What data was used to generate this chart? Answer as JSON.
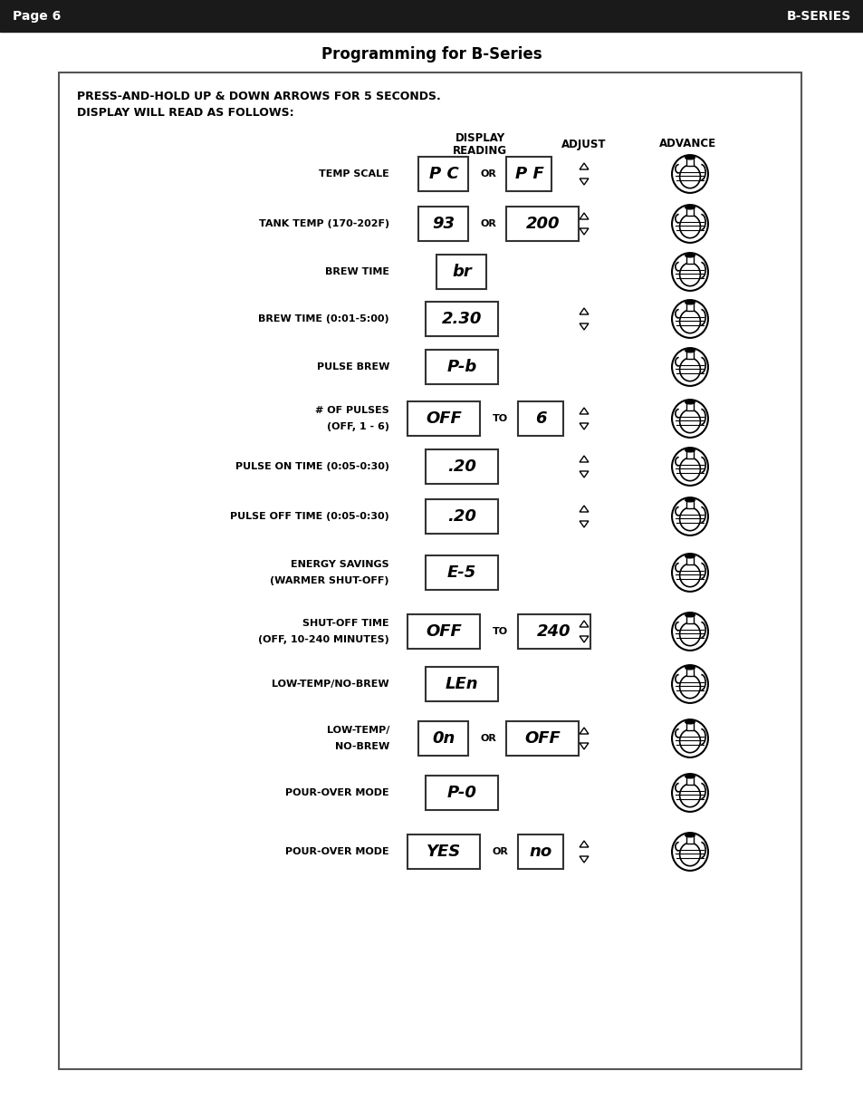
{
  "page_header_left": "Page 6",
  "page_header_right": "B-SERIES",
  "header_bg": "#1a1a1a",
  "header_text_color": "#ffffff",
  "title": "Programming for B-Series",
  "intro_line1": "PRESS-AND-HOLD UP & DOWN ARROWS FOR 5 SECONDS.",
  "intro_line2": "DISPLAY WILL READ AS FOLLOWS:",
  "figw": 9.54,
  "figh": 12.35,
  "dpi": 100,
  "rows": [
    {
      "label": "TEMP SCALE",
      "label2": "",
      "display1": "P C",
      "connector": "OR",
      "display2": "P F",
      "has_arrows": true,
      "has_advance": true,
      "d1_wide": false,
      "d2_wide": false
    },
    {
      "label": "TANK TEMP (170-202F)",
      "label2": "",
      "display1": "93",
      "connector": "OR",
      "display2": "200",
      "has_arrows": true,
      "has_advance": true,
      "d1_wide": false,
      "d2_wide": true
    },
    {
      "label": "BREW TIME",
      "label2": "",
      "display1": "br",
      "connector": "",
      "display2": "",
      "has_arrows": false,
      "has_advance": true,
      "d1_wide": false,
      "d2_wide": false
    },
    {
      "label": "BREW TIME (0:01-5:00)",
      "label2": "",
      "display1": "2.30",
      "connector": "",
      "display2": "",
      "has_arrows": true,
      "has_advance": true,
      "d1_wide": true,
      "d2_wide": false
    },
    {
      "label": "PULSE BREW",
      "label2": "",
      "display1": "P-b",
      "connector": "",
      "display2": "",
      "has_arrows": false,
      "has_advance": true,
      "d1_wide": true,
      "d2_wide": false
    },
    {
      "label": "# OF PULSES",
      "label2": "(OFF, 1 - 6)",
      "display1": "OFF",
      "connector": "TO",
      "display2": "6",
      "has_arrows": true,
      "has_advance": true,
      "d1_wide": true,
      "d2_wide": false
    },
    {
      "label": "PULSE ON TIME (0:05-0:30)",
      "label2": "",
      "display1": ".20",
      "connector": "",
      "display2": "",
      "has_arrows": true,
      "has_advance": true,
      "d1_wide": true,
      "d2_wide": false
    },
    {
      "label": "PULSE OFF TIME (0:05-0:30)",
      "label2": "",
      "display1": ".20",
      "connector": "",
      "display2": "",
      "has_arrows": true,
      "has_advance": true,
      "d1_wide": true,
      "d2_wide": false
    },
    {
      "label": "ENERGY SAVINGS",
      "label2": "(WARMER SHUT-OFF)",
      "display1": "E-5",
      "connector": "",
      "display2": "",
      "has_arrows": false,
      "has_advance": true,
      "d1_wide": true,
      "d2_wide": false
    },
    {
      "label": "SHUT-OFF TIME",
      "label2": "(OFF, 10-240 MINUTES)",
      "display1": "OFF",
      "connector": "TO",
      "display2": "240",
      "has_arrows": true,
      "has_advance": true,
      "d1_wide": true,
      "d2_wide": true
    },
    {
      "label": "LOW-TEMP/NO-BREW",
      "label2": "",
      "display1": "LEn",
      "connector": "",
      "display2": "",
      "has_arrows": false,
      "has_advance": true,
      "d1_wide": true,
      "d2_wide": false
    },
    {
      "label": "LOW-TEMP/",
      "label2": "NO-BREW",
      "display1": "0n",
      "connector": "OR",
      "display2": "OFF",
      "has_arrows": true,
      "has_advance": true,
      "d1_wide": false,
      "d2_wide": true
    },
    {
      "label": "POUR-OVER MODE",
      "label2": "",
      "display1": "P-0",
      "connector": "",
      "display2": "",
      "has_arrows": false,
      "has_advance": true,
      "d1_wide": true,
      "d2_wide": false
    },
    {
      "label": "POUR-OVER MODE",
      "label2": "",
      "display1": "YES",
      "connector": "OR",
      "display2": "no",
      "has_arrows": true,
      "has_advance": true,
      "d1_wide": true,
      "d2_wide": false
    }
  ]
}
